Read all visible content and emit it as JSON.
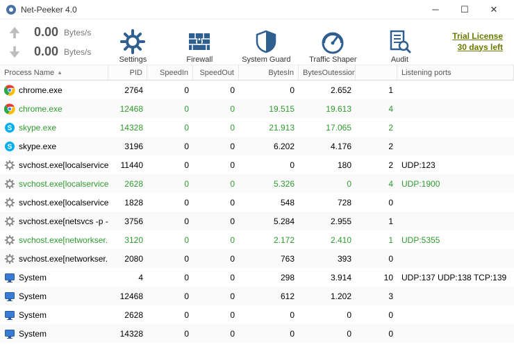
{
  "window": {
    "title": "Net-Peeker 4.0"
  },
  "speed": {
    "up_value": "0.00",
    "up_unit": "Bytes/s",
    "down_value": "0.00",
    "down_unit": "Bytes/s"
  },
  "toolbar": {
    "settings": "Settings",
    "firewall": "Firewall",
    "systemguard": "System Guard",
    "trafficshaper": "Traffic Shaper",
    "audit": "Audit"
  },
  "license": {
    "line1": "Trial License",
    "line2": "30 days left"
  },
  "columns": {
    "process": "Process Name",
    "pid": "PID",
    "speedin": "SpeedIn",
    "speedout": "SpeedOut",
    "bytesin": "BytesIn",
    "bytesout": "BytesOut",
    "sessions": "essions",
    "listening": "Listening ports"
  },
  "rows": [
    {
      "icon": "chrome",
      "name": "chrome.exe",
      "pid": "2764",
      "sin": "0",
      "sout": "0",
      "bin": "0",
      "bout": "2.652",
      "sess": "1",
      "listen": "",
      "green": false
    },
    {
      "icon": "chrome",
      "name": "chrome.exe",
      "pid": "12468",
      "sin": "0",
      "sout": "0",
      "bin": "19.515",
      "bout": "19.613",
      "sess": "4",
      "listen": "",
      "green": true
    },
    {
      "icon": "skype",
      "name": "skype.exe",
      "pid": "14328",
      "sin": "0",
      "sout": "0",
      "bin": "21.913",
      "bout": "17.065",
      "sess": "2",
      "listen": "",
      "green": true
    },
    {
      "icon": "skype",
      "name": "skype.exe",
      "pid": "3196",
      "sin": "0",
      "sout": "0",
      "bin": "6.202",
      "bout": "4.176",
      "sess": "2",
      "listen": "",
      "green": false
    },
    {
      "icon": "gear",
      "name": "svchost.exe[localservice...",
      "pid": "11440",
      "sin": "0",
      "sout": "0",
      "bin": "0",
      "bout": "180",
      "sess": "2",
      "listen": "UDP:123",
      "green": false
    },
    {
      "icon": "gear",
      "name": "svchost.exe[localservice...",
      "pid": "2628",
      "sin": "0",
      "sout": "0",
      "bin": "5.326",
      "bout": "0",
      "sess": "4",
      "listen": "UDP:1900",
      "green": true
    },
    {
      "icon": "gear",
      "name": "svchost.exe[localservice...",
      "pid": "1828",
      "sin": "0",
      "sout": "0",
      "bin": "548",
      "bout": "728",
      "sess": "0",
      "listen": "",
      "green": false
    },
    {
      "icon": "gear",
      "name": "svchost.exe[netsvcs -p -...",
      "pid": "3756",
      "sin": "0",
      "sout": "0",
      "bin": "5.284",
      "bout": "2.955",
      "sess": "1",
      "listen": "",
      "green": false
    },
    {
      "icon": "gear",
      "name": "svchost.exe[networkser...",
      "pid": "3120",
      "sin": "0",
      "sout": "0",
      "bin": "2.172",
      "bout": "2.410",
      "sess": "1",
      "listen": "UDP:5355",
      "green": true
    },
    {
      "icon": "gear",
      "name": "svchost.exe[networkser...",
      "pid": "2080",
      "sin": "0",
      "sout": "0",
      "bin": "763",
      "bout": "393",
      "sess": "0",
      "listen": "",
      "green": false
    },
    {
      "icon": "monitor",
      "name": "System",
      "pid": "4",
      "sin": "0",
      "sout": "0",
      "bin": "298",
      "bout": "3.914",
      "sess": "10",
      "listen": "UDP:137 UDP:138 TCP:139",
      "green": false
    },
    {
      "icon": "monitor",
      "name": "System",
      "pid": "12468",
      "sin": "0",
      "sout": "0",
      "bin": "612",
      "bout": "1.202",
      "sess": "3",
      "listen": "",
      "green": false
    },
    {
      "icon": "monitor",
      "name": "System",
      "pid": "2628",
      "sin": "0",
      "sout": "0",
      "bin": "0",
      "bout": "0",
      "sess": "0",
      "listen": "",
      "green": false
    },
    {
      "icon": "monitor",
      "name": "System",
      "pid": "14328",
      "sin": "0",
      "sout": "0",
      "bin": "0",
      "bout": "0",
      "sess": "0",
      "listen": "",
      "green": false
    }
  ],
  "icon_svgs": {
    "chrome": "<svg viewBox='0 0 16 16'><circle cx='8' cy='8' r='7.5' fill='#fff'/><path d='M8 0.5a7.5 7.5 0 0 1 6.8 4.3H8a3.2 3.2 0 0 0-2.9 1.8L2.2 2.5A7.5 7.5 0 0 1 8 .5z' fill='#e33b2e'/><path d='M2.2 2.5l3 4.1A3.2 3.2 0 0 0 8 11.2l-2.8 4A7.5 7.5 0 0 1 2.2 2.5z' fill='#2ba84a'/><path d='M14.8 4.8A7.5 7.5 0 0 1 5.2 15.2L8 11.2a3.2 3.2 0 0 0 3-4.8l3.8-1.6z' fill='#fbbc05'/><circle cx='8' cy='8' r='3' fill='#fff'/><circle cx='8' cy='8' r='2.2' fill='#4285f4'/></svg>",
    "skype": "<svg viewBox='0 0 16 16'><circle cx='8' cy='8' r='7' fill='#00aff0'/><text x='8' y='11.5' text-anchor='middle' font-size='10' font-weight='bold' fill='#fff' font-family='Arial'>S</text></svg>",
    "gear": "<svg viewBox='0 0 16 16'><circle cx='8' cy='8' r='4' fill='none' stroke='#888' stroke-width='2'/><g stroke='#888' stroke-width='2'><line x1='8' y1='1' x2='8' y2='3'/><line x1='8' y1='13' x2='8' y2='15'/><line x1='1' y1='8' x2='3' y2='8'/><line x1='13' y1='8' x2='15' y2='8'/><line x1='3' y1='3' x2='4.5' y2='4.5'/><line x1='11.5' y1='11.5' x2='13' y2='13'/><line x1='3' y1='13' x2='4.5' y2='11.5'/><line x1='11.5' y1='4.5' x2='13' y2='3'/></g></svg>",
    "monitor": "<svg viewBox='0 0 16 16'><rect x='1.5' y='2.5' width='13' height='9' rx='1' fill='#3a7bd5' stroke='#2a5ba0'/><rect x='6' y='12' width='4' height='2' fill='#2a5ba0'/><rect x='4' y='14' width='8' height='1' fill='#2a5ba0'/></svg>"
  },
  "colors": {
    "green_row": "#2e9a2e",
    "stripe": "#fafafa",
    "toolbar_icon": "#2f5f8f"
  }
}
